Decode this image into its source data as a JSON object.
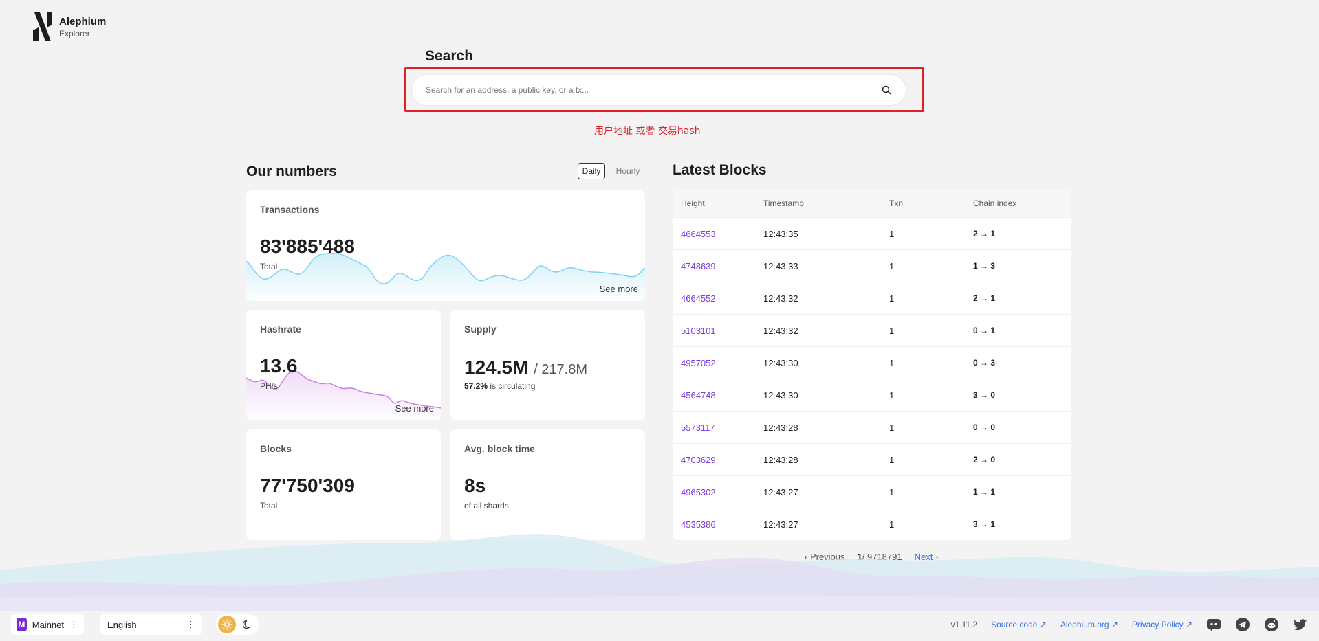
{
  "brand": {
    "name": "Alephium",
    "sub": "Explorer"
  },
  "search": {
    "title": "Search",
    "placeholder": "Search for an address, a public key, or a tx...",
    "annotation": "用户地址 或者 交易hash"
  },
  "numbers": {
    "title": "Our numbers",
    "toggle": {
      "daily": "Daily",
      "hourly": "Hourly",
      "selected": "Daily"
    },
    "transactions": {
      "label": "Transactions",
      "value": "83'885'488",
      "sub": "Total",
      "see_more": "See more",
      "color": "#7fd3f0"
    },
    "hashrate": {
      "label": "Hashrate",
      "value": "13.6",
      "sub": "PH/s",
      "see_more": "See more",
      "color": "#d49be8"
    },
    "supply": {
      "label": "Supply",
      "value": "124.5M",
      "total": "/ 217.8M",
      "pct": "57.2%",
      "sub": "is circulating"
    },
    "blocks": {
      "label": "Blocks",
      "value": "77'750'309",
      "sub": "Total"
    },
    "block_time": {
      "label": "Avg. block time",
      "value": "8s",
      "sub": "of all shards"
    }
  },
  "latest_blocks": {
    "title": "Latest Blocks",
    "columns": [
      "Height",
      "Timestamp",
      "Txn",
      "Chain index"
    ],
    "rows": [
      {
        "height": "4664553",
        "time": "12:43:35",
        "txn": "1",
        "chain": "2 → 1"
      },
      {
        "height": "4748639",
        "time": "12:43:33",
        "txn": "1",
        "chain": "1 → 3"
      },
      {
        "height": "4664552",
        "time": "12:43:32",
        "txn": "1",
        "chain": "2 → 1"
      },
      {
        "height": "5103101",
        "time": "12:43:32",
        "txn": "1",
        "chain": "0 → 1"
      },
      {
        "height": "4957052",
        "time": "12:43:30",
        "txn": "1",
        "chain": "0 → 3"
      },
      {
        "height": "4564748",
        "time": "12:43:30",
        "txn": "1",
        "chain": "3 → 0"
      },
      {
        "height": "5573117",
        "time": "12:43:28",
        "txn": "1",
        "chain": "0 → 0"
      },
      {
        "height": "4703629",
        "time": "12:43:28",
        "txn": "1",
        "chain": "2 → 0"
      },
      {
        "height": "4965302",
        "time": "12:43:27",
        "txn": "1",
        "chain": "1 → 1"
      },
      {
        "height": "4535386",
        "time": "12:43:27",
        "txn": "1",
        "chain": "3 → 1"
      }
    ],
    "pagination": {
      "prev": "‹ Previous",
      "current": "1",
      "total": "/ 9718791",
      "next": "Next ›"
    }
  },
  "footer": {
    "network_badge": "M",
    "network": "Mainnet",
    "language": "English",
    "version": "v1.11.2",
    "links": [
      "Source code ↗",
      "Alephium.org ↗",
      "Privacy Policy ↗"
    ],
    "social_icons": [
      "discord-icon",
      "telegram-icon",
      "reddit-icon",
      "twitter-icon"
    ]
  }
}
